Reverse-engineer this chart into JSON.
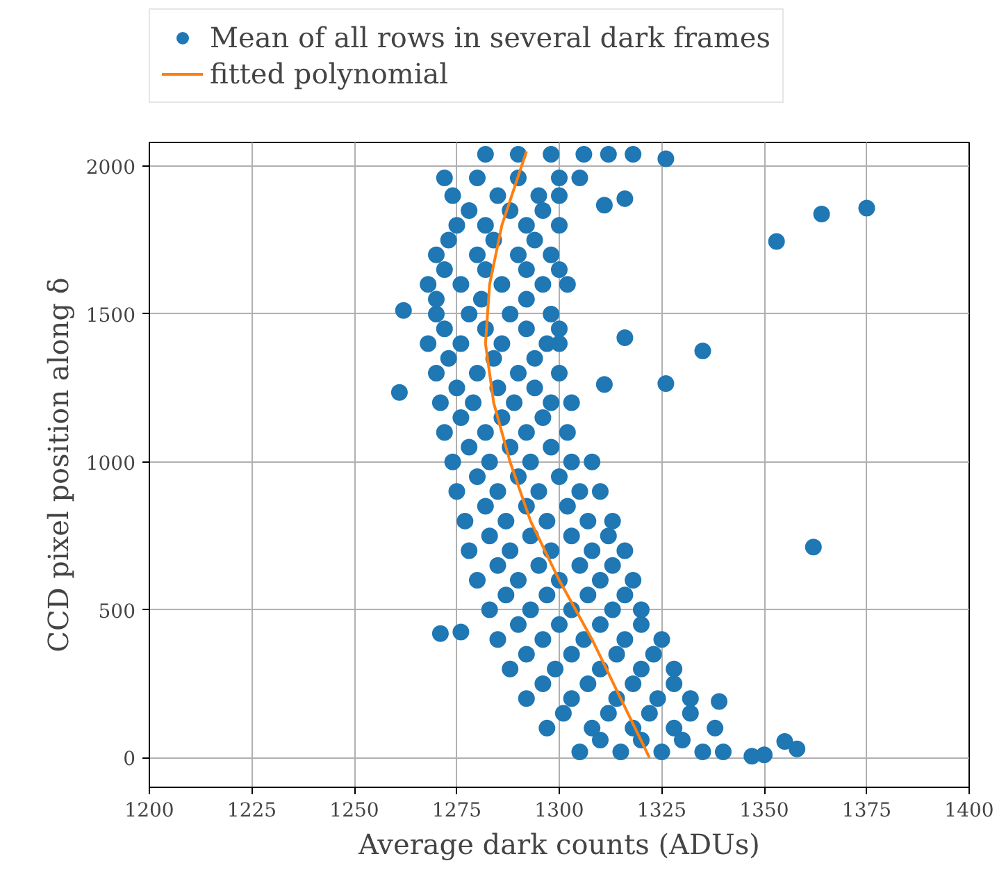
{
  "chart_data": {
    "type": "scatter",
    "xlabel": "Average dark counts (ADUs)",
    "ylabel": "CCD pixel position along δ",
    "xlim": [
      1200,
      1400
    ],
    "xticks": [
      1200,
      1225,
      1250,
      1275,
      1300,
      1325,
      1350,
      1375,
      1400
    ],
    "ylim": [
      -100,
      2080
    ],
    "yticks": [
      0,
      500,
      1000,
      1500,
      2000
    ],
    "grid": true,
    "legend": "top",
    "series": [
      {
        "name": "Mean of all rows in several dark frames",
        "color": "#1f77b4",
        "marker": "circle",
        "x": [
          1282,
          1290,
          1298,
          1306,
          1312,
          1318,
          1272,
          1280,
          1290,
          1300,
          1305,
          1274,
          1285,
          1295,
          1300,
          1275,
          1282,
          1292,
          1300,
          1270,
          1280,
          1290,
          1298,
          1268,
          1276,
          1286,
          1296,
          1302,
          1270,
          1278,
          1288,
          1298,
          1268,
          1276,
          1286,
          1297,
          1300,
          1270,
          1280,
          1290,
          1300,
          1271,
          1279,
          1289,
          1298,
          1303,
          1272,
          1282,
          1292,
          1302,
          1274,
          1283,
          1293,
          1303,
          1308,
          1275,
          1285,
          1295,
          1305,
          1310,
          1277,
          1287,
          1297,
          1307,
          1313,
          1278,
          1288,
          1298,
          1308,
          1316,
          1280,
          1290,
          1300,
          1310,
          1318,
          1283,
          1293,
          1303,
          1313,
          1320,
          1285,
          1296,
          1306,
          1316,
          1325,
          1288,
          1299,
          1310,
          1320,
          1328,
          1292,
          1303,
          1314,
          1324,
          1332,
          1297,
          1308,
          1318,
          1328,
          1338,
          1305,
          1315,
          1325,
          1335,
          1340,
          1326,
          1311,
          1316,
          1353,
          1364,
          1375,
          1335,
          1326,
          1311,
          1316,
          1362,
          1262,
          1261,
          1271,
          1276,
          1347,
          1350,
          1358,
          1355,
          1339,
          1278,
          1288,
          1296,
          1273,
          1284,
          1294,
          1272,
          1282,
          1292,
          1300,
          1270,
          1281,
          1292,
          1272,
          1282,
          1292,
          1300,
          1273,
          1284,
          1294,
          1275,
          1285,
          1294,
          1276,
          1286,
          1296,
          1278,
          1288,
          1298,
          1280,
          1290,
          1300,
          1282,
          1292,
          1302,
          1283,
          1293,
          1303,
          1312,
          1285,
          1295,
          1305,
          1313,
          1287,
          1297,
          1307,
          1316,
          1290,
          1300,
          1310,
          1320,
          1292,
          1303,
          1314,
          1323,
          1296,
          1307,
          1318,
          1328,
          1301,
          1312,
          1322,
          1332,
          1310,
          1320,
          1330
        ],
        "values": [
          2040,
          2040,
          2040,
          2040,
          2040,
          2040,
          1960,
          1960,
          1960,
          1960,
          1960,
          1900,
          1900,
          1900,
          1900,
          1800,
          1800,
          1800,
          1800,
          1700,
          1700,
          1700,
          1700,
          1600,
          1600,
          1600,
          1600,
          1600,
          1500,
          1500,
          1500,
          1500,
          1400,
          1400,
          1400,
          1400,
          1400,
          1300,
          1300,
          1300,
          1300,
          1200,
          1200,
          1200,
          1200,
          1200,
          1100,
          1100,
          1100,
          1100,
          1000,
          1000,
          1000,
          1000,
          1000,
          900,
          900,
          900,
          900,
          900,
          800,
          800,
          800,
          800,
          800,
          700,
          700,
          700,
          700,
          700,
          600,
          600,
          600,
          600,
          600,
          500,
          500,
          500,
          500,
          500,
          400,
          400,
          400,
          400,
          400,
          300,
          300,
          300,
          300,
          300,
          200,
          200,
          200,
          200,
          200,
          100,
          100,
          100,
          100,
          100,
          20,
          20,
          20,
          20,
          20,
          2025,
          1868,
          1890,
          1745,
          1838,
          1858,
          1375,
          1265,
          1262,
          1420,
          712,
          1512,
          1235,
          420,
          425,
          5,
          10,
          30,
          55,
          190,
          1850,
          1850,
          1850,
          1750,
          1750,
          1750,
          1650,
          1650,
          1650,
          1650,
          1550,
          1550,
          1550,
          1450,
          1450,
          1450,
          1450,
          1350,
          1350,
          1350,
          1250,
          1250,
          1250,
          1150,
          1150,
          1150,
          1050,
          1050,
          1050,
          950,
          950,
          950,
          850,
          850,
          850,
          750,
          750,
          750,
          750,
          650,
          650,
          650,
          650,
          550,
          550,
          550,
          550,
          450,
          450,
          450,
          450,
          350,
          350,
          350,
          350,
          250,
          250,
          250,
          250,
          150,
          150,
          150,
          150,
          60,
          60,
          60
        ]
      },
      {
        "name": "fitted polynomial",
        "type": "line",
        "color": "#ff7f0e",
        "x": [
          1322,
          1315,
          1308,
          1300,
          1293,
          1288,
          1284,
          1282,
          1283,
          1286,
          1292
        ],
        "values": [
          0,
          200,
          400,
          600,
          800,
          1000,
          1200,
          1400,
          1600,
          1800,
          2050
        ]
      }
    ]
  }
}
